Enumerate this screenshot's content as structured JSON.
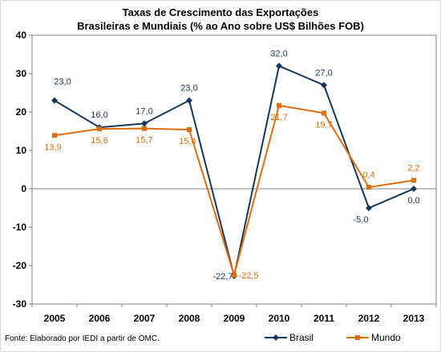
{
  "chart_data": {
    "type": "line",
    "title": "Taxas de Crescimento das Exportações",
    "subtitle": "Brasileiras e Mundiais (% ao Ano sobre US$ Bilhões FOB)",
    "categories": [
      "2005",
      "2006",
      "2007",
      "2008",
      "2009",
      "2010",
      "2011",
      "2012",
      "2013"
    ],
    "series": [
      {
        "name": "Brasil",
        "color": "#17375e",
        "marker": "diamond",
        "values": [
          23.0,
          16.0,
          17.0,
          23.0,
          -22.7,
          32.0,
          27.0,
          -5.0,
          0.0
        ],
        "labels": [
          "23,0",
          "16,0",
          "17,0",
          "23,0",
          "-22,7",
          "32,0",
          "27,0",
          "-5,0",
          "0,0"
        ]
      },
      {
        "name": "Mundo",
        "color": "#e36c09",
        "marker": "square",
        "values": [
          13.9,
          15.6,
          15.7,
          15.4,
          -22.5,
          21.7,
          19.7,
          0.4,
          2.2
        ],
        "labels": [
          "13,9",
          "15,6",
          "15,7",
          "15,4",
          "-22,5",
          "21,7",
          "19,7",
          "0,4",
          "2,2"
        ]
      }
    ],
    "ylim": [
      -30,
      40
    ],
    "yticks": [
      40,
      30,
      20,
      10,
      0,
      -10,
      -20,
      -30
    ],
    "xlabel": "",
    "ylabel": "",
    "grid": false,
    "legend_position": "bottom-right"
  },
  "footer": {
    "source": "Fonte: Elaborado por IEDI a partir de OMC."
  }
}
